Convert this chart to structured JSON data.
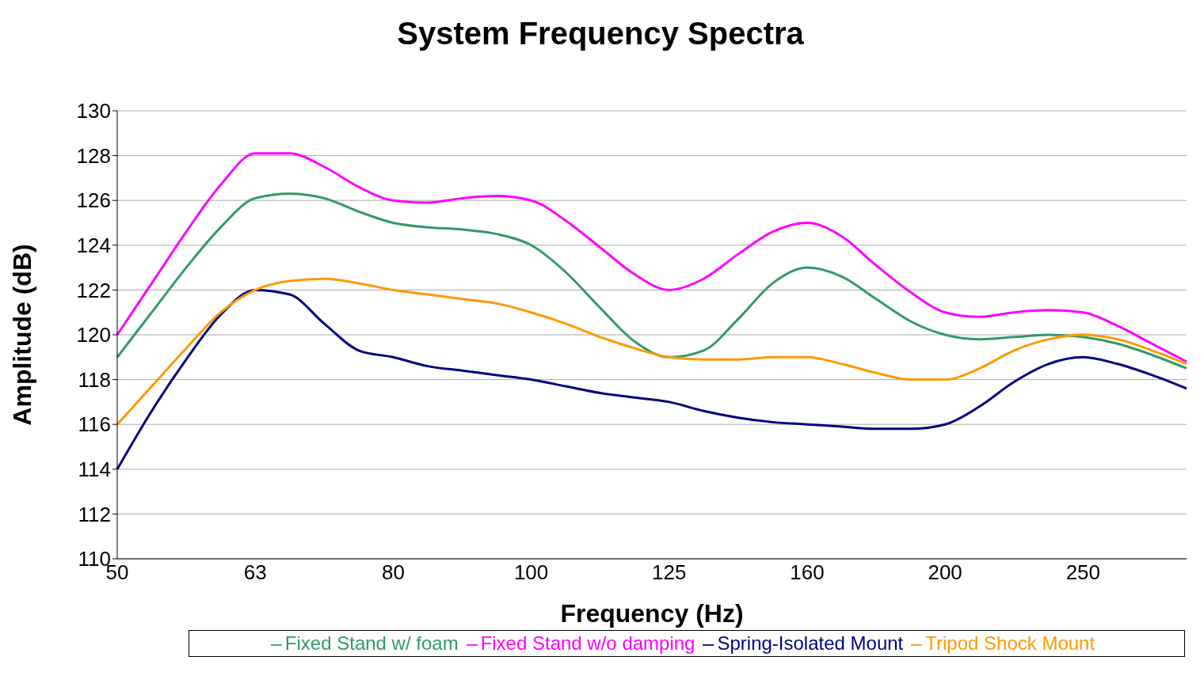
{
  "chart_data": {
    "type": "line",
    "title": "System Frequency Spectra",
    "xlabel": "Frequency (Hz)",
    "ylabel": "Amplitude (dB)",
    "categories": [
      "50",
      null,
      null,
      null,
      "63",
      null,
      null,
      null,
      "80",
      null,
      null,
      null,
      "100",
      null,
      null,
      null,
      "125",
      null,
      null,
      null,
      "160",
      null,
      null,
      null,
      "200",
      null,
      null,
      null,
      "250",
      null,
      null,
      null
    ],
    "series": [
      {
        "name": "Spring-Isolated Mount",
        "color": "#000080",
        "values": [
          114,
          116.6,
          118.9,
          120.9,
          122.0,
          121.8,
          120.5,
          119.3,
          119.0,
          118.6,
          118.4,
          118.2,
          118.0,
          117.7,
          117.4,
          117.2,
          117.0,
          116.6,
          116.3,
          116.1,
          116.0,
          115.9,
          115.8,
          115.8,
          116.0,
          116.8,
          117.9,
          118.7,
          119.0,
          118.7,
          118.2,
          117.6
        ]
      },
      {
        "name": "Fixed Stand w/o damping",
        "color": "#ff00ff",
        "values": [
          120,
          122.3,
          124.6,
          126.7,
          128.1,
          128.1,
          127.5,
          126.6,
          126.0,
          125.9,
          126.1,
          126.2,
          126.0,
          125.1,
          123.9,
          122.7,
          122.0,
          122.5,
          123.6,
          124.6,
          125.0,
          124.4,
          123.1,
          121.9,
          121.0,
          120.8,
          121.0,
          121.1,
          121.0,
          120.4,
          119.6,
          118.8
        ]
      },
      {
        "name": "Fixed Stand w/ foam",
        "color": "#339966",
        "values": [
          119,
          121,
          123,
          124.8,
          126.1,
          126.3,
          126.1,
          125.5,
          125.0,
          124.8,
          124.7,
          124.5,
          124.0,
          122.8,
          121.2,
          119.7,
          119.0,
          119.3,
          120.7,
          122.3,
          123.0,
          122.6,
          121.6,
          120.6,
          120.0,
          119.8,
          119.9,
          120.0,
          119.9,
          119.6,
          119.1,
          118.5
        ]
      },
      {
        "name": "Tripod Shock Mount",
        "color": "#ff9900",
        "values": [
          116,
          117.7,
          119.4,
          121.0,
          122.0,
          122.4,
          122.5,
          122.3,
          122.0,
          121.8,
          121.6,
          121.4,
          121.0,
          120.5,
          119.9,
          119.4,
          119.0,
          118.9,
          118.9,
          119.0,
          119.0,
          118.7,
          118.3,
          118.0,
          118.0,
          118.5,
          119.3,
          119.8,
          120.0,
          119.8,
          119.3,
          118.7
        ]
      }
    ],
    "ylim": [
      110,
      130
    ],
    "yticks": [
      110,
      112,
      114,
      116,
      118,
      120,
      122,
      124,
      126,
      128,
      130
    ],
    "grid": "y",
    "legend": "bottom"
  }
}
